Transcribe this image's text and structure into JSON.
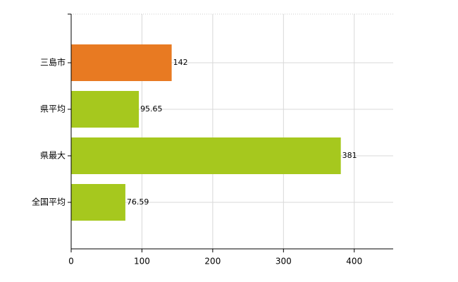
{
  "chart_data": {
    "type": "barh",
    "categories": [
      "三島市",
      "県平均",
      "県最大",
      "全国平均"
    ],
    "values": [
      142,
      95.65,
      381,
      76.59
    ],
    "colors": [
      "#e87a22",
      "#a6c81e",
      "#a6c81e",
      "#a6c81e"
    ],
    "xlim": [
      0,
      455
    ],
    "xticks": [
      0,
      100,
      200,
      300,
      400
    ],
    "grid": true
  }
}
